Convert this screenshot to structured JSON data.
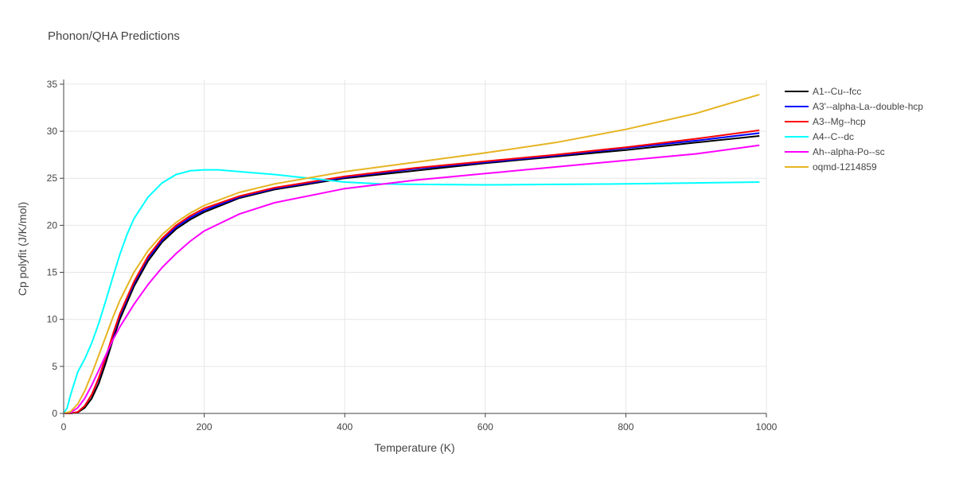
{
  "chart_data": {
    "type": "line",
    "title": "Phonon/QHA Predictions",
    "xlabel": "Temperature (K)",
    "ylabel": "Cp polyfit (J/K/mol)",
    "xlim": [
      0,
      1000
    ],
    "ylim": [
      0,
      35.5
    ],
    "xticks": [
      0,
      200,
      400,
      600,
      800,
      1000
    ],
    "xtick_labels": [
      "0",
      "200",
      "400",
      "600",
      "800",
      "1000"
    ],
    "yticks": [
      0,
      5,
      10,
      15,
      20,
      25,
      30,
      35
    ],
    "ytick_labels": [
      "0",
      "5",
      "10",
      "15",
      "20",
      "25",
      "30",
      "35"
    ],
    "grid": true,
    "legend_position": "right",
    "series": [
      {
        "name": "A1--Cu--fcc",
        "color": "#000000",
        "x": [
          0,
          10,
          20,
          30,
          40,
          50,
          60,
          70,
          80,
          100,
          120,
          140,
          160,
          180,
          200,
          250,
          300,
          400,
          500,
          600,
          700,
          800,
          900,
          990
        ],
        "y": [
          0,
          0,
          0.1,
          0.6,
          1.6,
          3.2,
          5.4,
          7.8,
          10.0,
          13.5,
          16.2,
          18.2,
          19.6,
          20.6,
          21.4,
          22.9,
          23.8,
          25.0,
          25.8,
          26.6,
          27.3,
          28.0,
          28.8,
          29.5
        ]
      },
      {
        "name": "A3'--alpha-La--double-hcp",
        "color": "#0000ff",
        "x": [
          0,
          10,
          20,
          30,
          40,
          50,
          60,
          70,
          80,
          100,
          120,
          140,
          160,
          180,
          200,
          250,
          300,
          400,
          500,
          600,
          700,
          800,
          900,
          990
        ],
        "y": [
          0,
          0,
          0.15,
          0.8,
          2.0,
          3.7,
          5.9,
          8.2,
          10.4,
          13.8,
          16.5,
          18.4,
          19.8,
          20.8,
          21.6,
          23.0,
          23.9,
          25.1,
          26.0,
          26.7,
          27.4,
          28.2,
          29.0,
          29.8
        ]
      },
      {
        "name": "A3--Mg--hcp",
        "color": "#ff0000",
        "x": [
          0,
          10,
          20,
          30,
          40,
          50,
          60,
          70,
          80,
          100,
          120,
          140,
          160,
          180,
          200,
          250,
          300,
          400,
          500,
          600,
          700,
          800,
          900,
          990
        ],
        "y": [
          0,
          0,
          0.15,
          0.8,
          2.0,
          3.8,
          6.0,
          8.4,
          10.6,
          14.0,
          16.7,
          18.6,
          20.0,
          21.0,
          21.8,
          23.1,
          24.0,
          25.2,
          26.1,
          26.8,
          27.5,
          28.3,
          29.2,
          30.1
        ]
      },
      {
        "name": "A4--C--dc",
        "color": "#00ffff",
        "x": [
          0,
          5,
          10,
          20,
          30,
          40,
          50,
          60,
          70,
          80,
          90,
          100,
          120,
          140,
          160,
          180,
          200,
          220,
          250,
          300,
          350,
          400,
          450,
          500,
          600,
          700,
          800,
          900,
          990
        ],
        "y": [
          0,
          0.6,
          2.0,
          4.4,
          5.8,
          7.5,
          9.6,
          12.0,
          14.5,
          16.9,
          19.0,
          20.7,
          23.0,
          24.5,
          25.4,
          25.8,
          25.9,
          25.9,
          25.7,
          25.4,
          25.0,
          24.6,
          24.4,
          24.35,
          24.3,
          24.35,
          24.4,
          24.5,
          24.6
        ]
      },
      {
        "name": "Ah--alpha-Po--sc",
        "color": "#ff00ff",
        "x": [
          0,
          10,
          20,
          30,
          40,
          50,
          60,
          70,
          80,
          100,
          120,
          140,
          160,
          180,
          200,
          250,
          300,
          400,
          500,
          600,
          700,
          800,
          900,
          990
        ],
        "y": [
          0,
          0.1,
          0.6,
          1.6,
          3.0,
          4.6,
          6.2,
          7.8,
          9.2,
          11.6,
          13.7,
          15.5,
          17.0,
          18.3,
          19.4,
          21.2,
          22.4,
          23.9,
          24.8,
          25.5,
          26.2,
          26.9,
          27.6,
          28.5
        ]
      },
      {
        "name": "oqmd-1214859",
        "color": "#e6b422",
        "x": [
          0,
          10,
          20,
          30,
          40,
          50,
          60,
          70,
          80,
          100,
          120,
          140,
          160,
          180,
          200,
          250,
          300,
          400,
          500,
          600,
          700,
          800,
          900,
          990
        ],
        "y": [
          0,
          0.2,
          1.0,
          2.4,
          4.2,
          6.2,
          8.2,
          10.2,
          12.0,
          15.0,
          17.3,
          19.0,
          20.3,
          21.3,
          22.1,
          23.5,
          24.4,
          25.7,
          26.7,
          27.7,
          28.8,
          30.2,
          31.9,
          33.9
        ]
      }
    ]
  }
}
